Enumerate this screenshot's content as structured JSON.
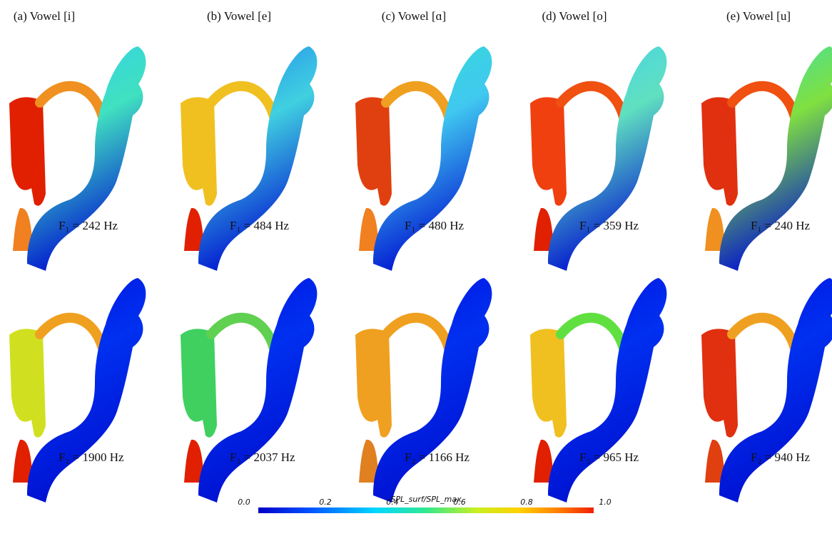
{
  "panels": [
    {
      "title": "(a) Vowel [i]",
      "f1_label": "F₁ = 242 Hz",
      "f2_label": "F₂ = 1900 Hz"
    },
    {
      "title": "(b) Vowel [e]",
      "f1_label": "F₁ = 484 Hz",
      "f2_label": "F₂ = 2037 Hz"
    },
    {
      "title": "(c) Vowel [ɑ]",
      "f1_label": "F₁ = 480 Hz",
      "f2_label": "F₂ = 1166 Hz"
    },
    {
      "title": "(d) Vowel [o]",
      "f1_label": "F₁ = 359 Hz",
      "f2_label": "F₂ = 965 Hz"
    },
    {
      "title": "(e) Vowel [u]",
      "f1_label": "F₁ = 240 Hz",
      "f2_label": "F₂ = 940 Hz"
    }
  ],
  "colorbar": {
    "label": "SPL_surf/SPL_max",
    "ticks": [
      {
        "value": 0,
        "label": "0.0"
      },
      0.2,
      0.4,
      0.6,
      0.8,
      {
        "value": 1,
        "label": "1.0"
      }
    ],
    "range": [
      0,
      1
    ]
  }
}
